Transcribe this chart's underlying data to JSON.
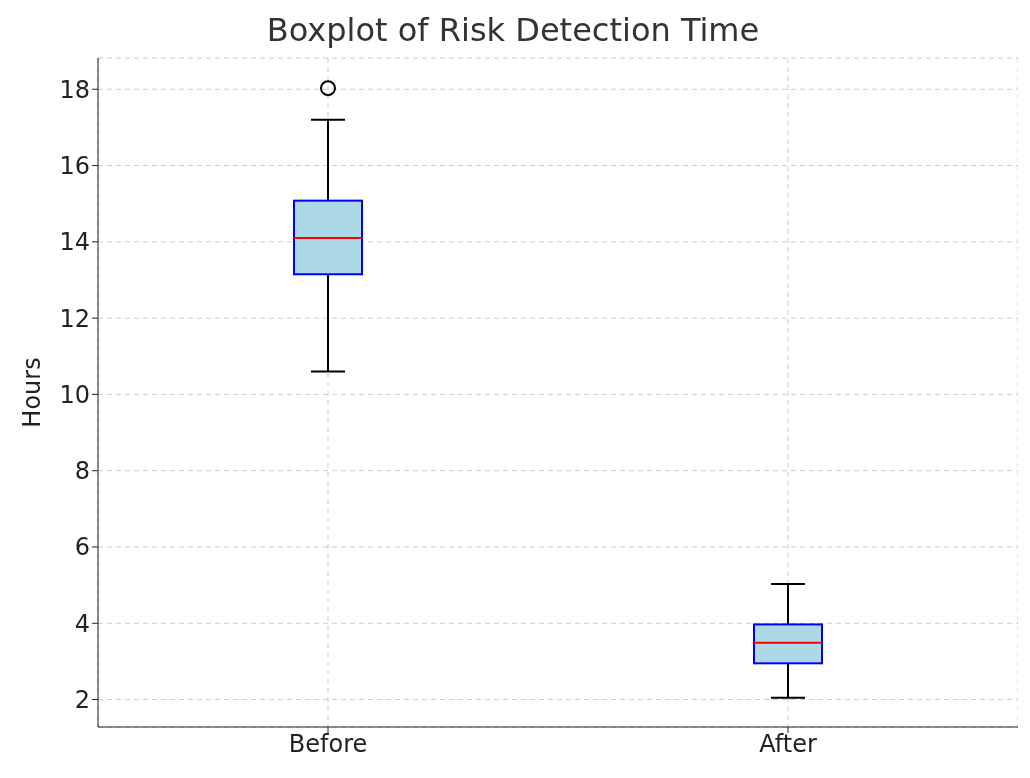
{
  "chart_data": {
    "type": "box",
    "title": "Boxplot of Risk Detection Time",
    "ylabel": "Hours",
    "categories": [
      "Before",
      "After"
    ],
    "boxes": [
      {
        "low": 10.6,
        "q1": 13.15,
        "median": 14.1,
        "q3": 15.08,
        "high": 17.2,
        "outliers": [
          18.03
        ]
      },
      {
        "low": 2.05,
        "q1": 2.95,
        "median": 3.49,
        "q3": 3.97,
        "high": 5.03
      }
    ],
    "color": "#add8e6",
    "ylim": [
      1.28,
      18.82
    ],
    "yticks": [
      2,
      4,
      6,
      8,
      10,
      12,
      14,
      16,
      18
    ],
    "grid": true
  }
}
